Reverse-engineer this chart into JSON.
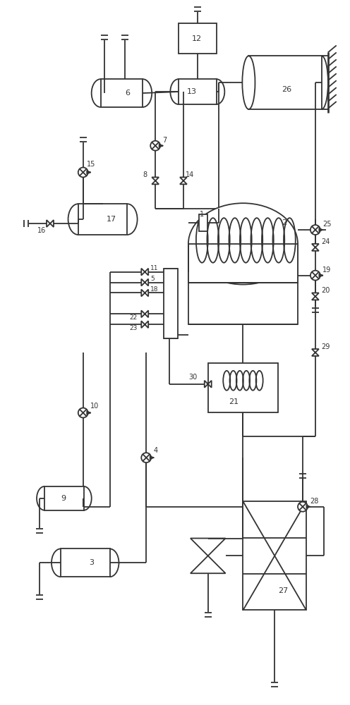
{
  "bg_color": "#ffffff",
  "line_color": "#333333",
  "lw": 1.3
}
